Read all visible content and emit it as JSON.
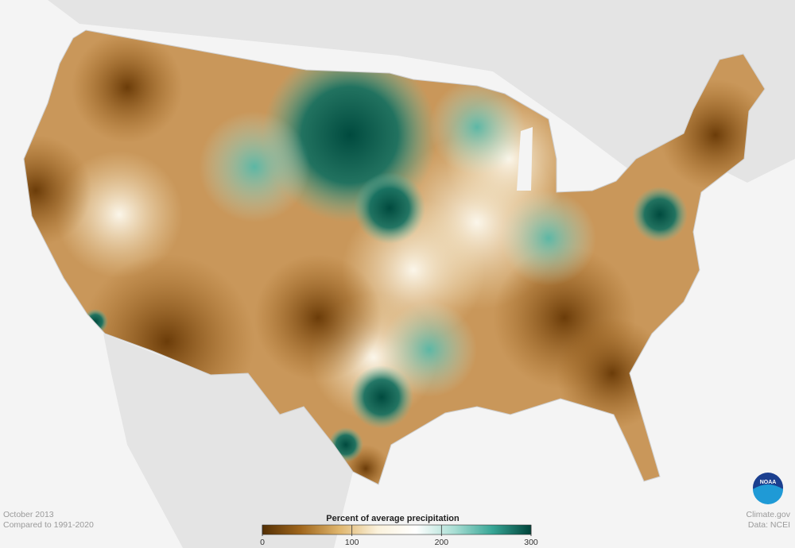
{
  "map": {
    "date": "October 2013",
    "comparison": "Compared to 1991-2020",
    "credit": "Climate.gov",
    "source": "Data: NCEI",
    "logo": "NOAA"
  },
  "legend": {
    "title": "Percent of average precipitation",
    "range": [
      0,
      300
    ],
    "ticks": [
      0,
      100,
      200,
      300
    ],
    "colors": [
      "#543005",
      "#a0661c",
      "#dfb56c",
      "#fbf2dc",
      "#ffffff",
      "#a9ded4",
      "#36a595",
      "#00443a"
    ]
  }
}
